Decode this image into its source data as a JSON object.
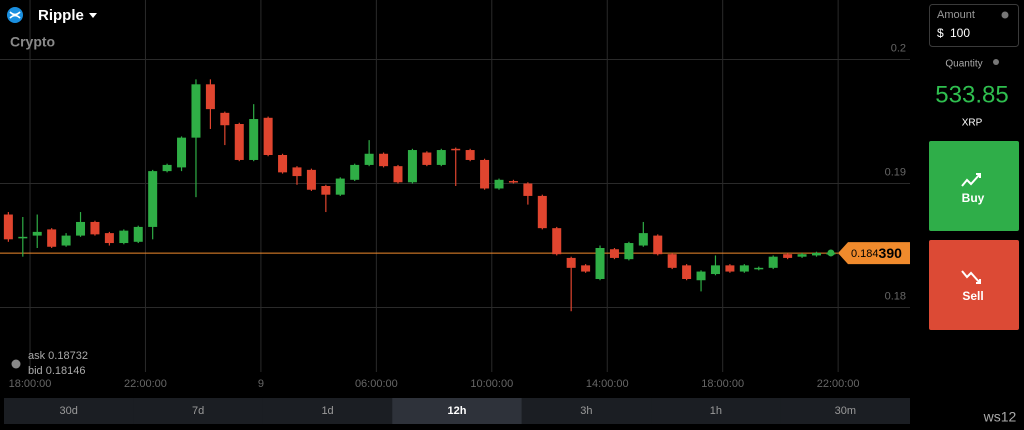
{
  "header": {
    "asset": "Ripple",
    "category": "Crypto"
  },
  "quotes": {
    "ask": "ask 0.18732",
    "bid": "bid 0.18146"
  },
  "chart_data": {
    "type": "candlestick",
    "x": [
      -0.75,
      -0.25,
      0.25,
      0.75,
      1.25,
      1.75,
      2.25,
      2.75,
      3.25,
      3.75,
      4.25,
      4.75,
      5.25,
      5.75,
      6.25,
      6.75,
      7.25,
      7.75,
      8.25,
      8.75,
      9.25,
      9.75,
      10.25,
      10.75,
      11.25,
      11.75,
      12.25,
      12.75,
      13.25,
      13.75,
      14.25,
      14.75,
      15.25,
      15.75,
      16.25,
      16.75,
      17.25,
      17.75,
      18.25,
      18.75,
      19.25,
      19.75,
      20.25,
      20.75,
      21.25,
      21.75,
      22.25,
      22.75,
      23.25,
      23.75,
      24.25,
      24.75,
      25.25,
      25.75,
      26.25,
      26.75,
      27.25,
      27.75
    ],
    "open": [
      0.1875,
      0.1856,
      0.1858,
      0.1863,
      0.185,
      0.1858,
      0.1869,
      0.186,
      0.1852,
      0.1853,
      0.1865,
      0.191,
      0.1913,
      0.1937,
      0.198,
      0.1957,
      0.1948,
      0.1919,
      0.1953,
      0.1923,
      0.1913,
      0.1911,
      0.1898,
      0.1891,
      0.1903,
      0.1915,
      0.1924,
      0.1914,
      0.1901,
      0.1925,
      0.1915,
      0.1928,
      0.1927,
      0.1919,
      0.1896,
      0.1902,
      0.19,
      0.189,
      0.1864,
      0.184,
      0.1834,
      0.1823,
      0.1847,
      0.1839,
      0.185,
      0.1858,
      0.1843,
      0.1834,
      0.1822,
      0.1827,
      0.1834,
      0.1829,
      0.1831,
      0.1832,
      0.1843,
      0.1841,
      0.1842,
      0.1843
    ],
    "high": [
      0.1877,
      0.1873,
      0.1875,
      0.1864,
      0.186,
      0.1877,
      0.187,
      0.1861,
      0.1863,
      0.1866,
      0.1911,
      0.1916,
      0.1938,
      0.1984,
      0.1984,
      0.1958,
      0.1949,
      0.1964,
      0.1954,
      0.1924,
      0.1914,
      0.1912,
      0.1899,
      0.1905,
      0.1916,
      0.1935,
      0.1925,
      0.1915,
      0.1928,
      0.1926,
      0.1928,
      0.1929,
      0.1928,
      0.192,
      0.1904,
      0.1903,
      0.1901,
      0.1891,
      0.1865,
      0.1841,
      0.1835,
      0.185,
      0.1848,
      0.1853,
      0.1869,
      0.1859,
      0.1844,
      0.1835,
      0.183,
      0.1842,
      0.1835,
      0.1835,
      0.1833,
      0.1842,
      0.1844,
      0.1844,
      0.1845,
      0.1845
    ],
    "low": [
      0.1853,
      0.1841,
      0.1848,
      0.1848,
      0.1849,
      0.1857,
      0.1858,
      0.185,
      0.1851,
      0.1852,
      0.1855,
      0.1909,
      0.191,
      0.1889,
      0.1944,
      0.1931,
      0.1918,
      0.1918,
      0.1922,
      0.1908,
      0.1899,
      0.1894,
      0.1877,
      0.189,
      0.1902,
      0.1914,
      0.1913,
      0.19,
      0.19,
      0.1914,
      0.1914,
      0.1898,
      0.1918,
      0.1895,
      0.1895,
      0.19,
      0.1883,
      0.1863,
      0.1842,
      0.1797,
      0.1828,
      0.1822,
      0.1839,
      0.1838,
      0.1849,
      0.1842,
      0.1831,
      0.1822,
      0.1813,
      0.1826,
      0.1828,
      0.1828,
      0.183,
      0.1831,
      0.1839,
      0.184,
      0.1841,
      0.1842
    ],
    "close": [
      0.1855,
      0.1857,
      0.1861,
      0.1849,
      0.1858,
      0.1869,
      0.1859,
      0.1852,
      0.1862,
      0.1865,
      0.191,
      0.1915,
      0.1937,
      0.198,
      0.196,
      0.1947,
      0.1919,
      0.1952,
      0.1923,
      0.1909,
      0.1906,
      0.1895,
      0.1891,
      0.1904,
      0.1915,
      0.1924,
      0.1914,
      0.1901,
      0.1927,
      0.1915,
      0.1927,
      0.1927,
      0.1919,
      0.1896,
      0.1903,
      0.1901,
      0.189,
      0.1864,
      0.1843,
      0.1832,
      0.1829,
      0.1848,
      0.184,
      0.1852,
      0.186,
      0.1843,
      0.1832,
      0.1823,
      0.1829,
      0.1834,
      0.1829,
      0.1834,
      0.1832,
      0.1841,
      0.184,
      0.1843,
      0.1844,
      0.1844
    ],
    "up_color": "#2fae46",
    "down_color": "#e0452f",
    "xlim": [
      -1.04,
      30.49
    ],
    "xticks": [
      {
        "value": 0,
        "label": "18:00:00"
      },
      {
        "value": 4,
        "label": "22:00:00"
      },
      {
        "value": 8,
        "label": "9"
      },
      {
        "value": 12,
        "label": "06:00:00"
      },
      {
        "value": 16,
        "label": "10:00:00"
      },
      {
        "value": 20,
        "label": "14:00:00"
      },
      {
        "value": 24,
        "label": "18:00:00"
      },
      {
        "value": 28,
        "label": "22:00:00"
      }
    ],
    "ylim": [
      0.1748,
      0.2048
    ],
    "yticks": [
      0.18,
      0.19,
      0.2
    ],
    "grid": true,
    "current_price": {
      "value": 0.18439,
      "label": "0.184390"
    },
    "price_color": "#f08a2c"
  },
  "timeframes": {
    "options": [
      "30d",
      "7d",
      "1d",
      "12h",
      "3h",
      "1h",
      "30m"
    ],
    "active": "12h"
  },
  "trade_panel": {
    "amount_label": "Amount",
    "currency": "$",
    "amount": "100",
    "quantity_label": "Quantity",
    "quantity": "533.85",
    "unit": "XRP",
    "buy": "Buy",
    "sell": "Sell"
  },
  "footer": {
    "tag": "ws12"
  }
}
